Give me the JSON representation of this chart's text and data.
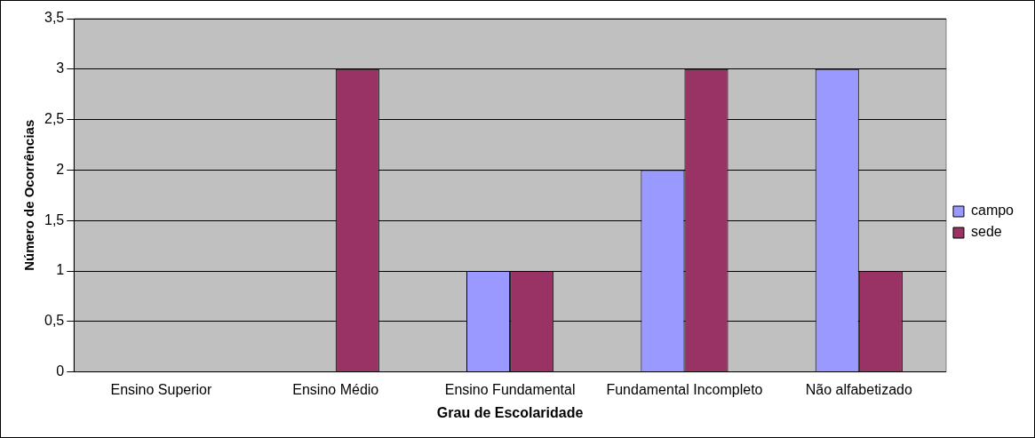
{
  "chart_data": {
    "type": "bar",
    "xlabel": "Grau de Escolaridade",
    "ylabel": "Número de Ocorrências",
    "categories": [
      "Ensino Superior",
      "Ensino Médio",
      "Ensino Fundamental",
      "Fundamental Incompleto",
      "Não alfabetizado"
    ],
    "series": [
      {
        "name": "campo",
        "color": "#9999ff",
        "values": [
          0,
          0,
          1,
          2,
          3
        ]
      },
      {
        "name": "sede",
        "color": "#993366",
        "values": [
          0,
          3,
          1,
          3,
          1
        ]
      }
    ],
    "ylim": [
      0,
      3.5
    ],
    "yticks": [
      0,
      {
        "value": 0.5,
        "label": "0,5"
      },
      1,
      {
        "value": 1.5,
        "label": "1,5"
      },
      2,
      {
        "value": 2.5,
        "label": "2,5"
      },
      3,
      {
        "value": 3.5,
        "label": "3,5"
      }
    ],
    "grid": "y",
    "legend": "right"
  }
}
